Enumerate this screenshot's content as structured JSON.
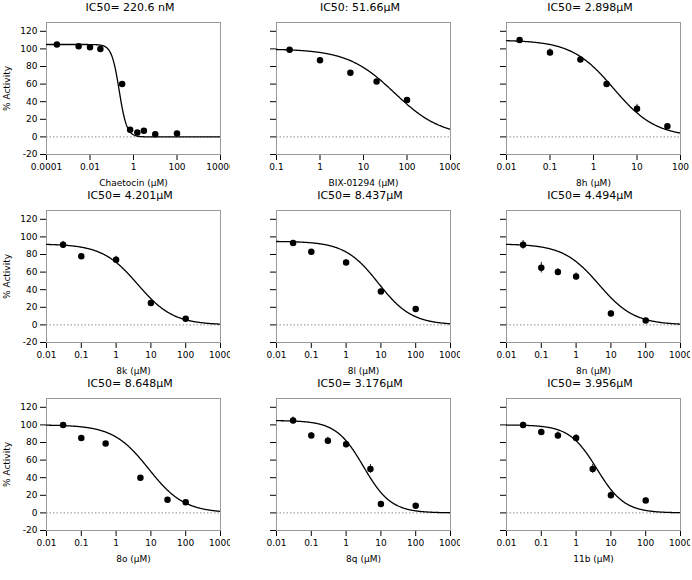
{
  "chart_data": [
    {
      "type": "scatter",
      "title": "IC50= 220.6 nM",
      "xlabel": "Chaetocin (μM)",
      "ylabel": "% Activity",
      "x": [
        0.0003,
        0.003,
        0.01,
        0.03,
        0.3,
        0.7,
        1.5,
        3.0,
        10.0,
        100.0
      ],
      "values": [
        105,
        103,
        102,
        100,
        60,
        8,
        5,
        7,
        3,
        4
      ],
      "fit": {
        "bottom": 0,
        "top": 105,
        "ic50": 0.2206,
        "hillslope": 2.5
      },
      "hline": 0,
      "xlim": [
        0.0001,
        10000
      ],
      "xticks": [
        0.0001,
        0.01,
        1,
        100,
        10000
      ],
      "ylim": [
        -20,
        130
      ],
      "yticks": [
        -20,
        0,
        20,
        40,
        60,
        80,
        100,
        120
      ],
      "log": "x",
      "color": "black",
      "marker": "circle",
      "line_style": "solid"
    },
    {
      "type": "scatter",
      "title": "IC50: 51.66μM",
      "xlabel": "BIX-01294 (μM)",
      "x": [
        0.2,
        1.0,
        5.0,
        20.0,
        100.0
      ],
      "values": [
        99,
        87,
        73,
        63,
        42
      ],
      "fit": {
        "bottom": 0,
        "top": 100,
        "ic50": 51.66,
        "hillslope": 0.8
      },
      "hline": 0,
      "xlim": [
        0.1,
        1000
      ],
      "xticks": [
        0.1,
        1,
        10,
        100,
        1000
      ],
      "ylim": [
        -20,
        130
      ],
      "yticks": [
        -20,
        0,
        20,
        40,
        60,
        80,
        100,
        120
      ],
      "log": "x",
      "tick_labels": "x",
      "color": "black",
      "marker": "circle",
      "line_style": "solid"
    },
    {
      "type": "scatter",
      "title": "IC50= 2.898μM",
      "xlabel": "8h (μM)",
      "x": [
        0.02,
        0.1,
        0.5,
        2.0,
        10.0,
        50.0
      ],
      "values": [
        110,
        96,
        88,
        60,
        32,
        12
      ],
      "yerr": [
        3,
        4,
        3,
        3,
        5,
        3
      ],
      "fit": {
        "bottom": 0,
        "top": 110,
        "ic50": 2.898,
        "hillslope": 0.9
      },
      "hline": 0,
      "xlim": [
        0.01,
        100
      ],
      "xticks": [
        0.01,
        0.1,
        1,
        10,
        100
      ],
      "ylim": [
        -20,
        130
      ],
      "yticks": [
        -20,
        0,
        20,
        40,
        60,
        80,
        100,
        120
      ],
      "log": "x",
      "tick_labels": "x",
      "color": "black",
      "marker": "circle",
      "line_style": "solid"
    },
    {
      "type": "scatter",
      "title": "IC50= 4.201μM",
      "xlabel": "8k (μM)",
      "ylabel": "% Activity",
      "x": [
        0.03,
        0.1,
        1.0,
        10.0,
        100.0
      ],
      "values": [
        91,
        78,
        74,
        25,
        7
      ],
      "yerr": [
        4,
        3,
        4,
        3,
        1
      ],
      "fit": {
        "bottom": 0,
        "top": 92,
        "ic50": 4.201,
        "hillslope": 0.85
      },
      "hline": 0,
      "xlim": [
        0.01,
        1000
      ],
      "xticks": [
        0.01,
        0.1,
        1,
        10,
        100,
        1000
      ],
      "ylim": [
        -20,
        130
      ],
      "yticks": [
        -20,
        0,
        20,
        40,
        60,
        80,
        100,
        120
      ],
      "log": "x",
      "color": "black",
      "marker": "circle",
      "line_style": "solid"
    },
    {
      "type": "scatter",
      "title": "IC50= 8.437μM",
      "xlabel": "8l (μM)",
      "x": [
        0.03,
        0.1,
        1.0,
        10.0,
        100.0
      ],
      "values": [
        93,
        83,
        71,
        38,
        18
      ],
      "yerr": [
        3,
        2,
        3,
        3,
        2
      ],
      "fit": {
        "bottom": 0,
        "top": 95,
        "ic50": 8.437,
        "hillslope": 0.9
      },
      "hline": 0,
      "xlim": [
        0.01,
        1000
      ],
      "xticks": [
        0.01,
        0.1,
        1,
        10,
        100,
        1000
      ],
      "ylim": [
        -20,
        130
      ],
      "yticks": [
        -20,
        0,
        20,
        40,
        60,
        80,
        100,
        120
      ],
      "log": "x",
      "tick_labels": "x",
      "color": "black",
      "marker": "circle",
      "line_style": "solid"
    },
    {
      "type": "scatter",
      "title": "IC50= 4.494μM",
      "xlabel": "8n (μM)",
      "x": [
        0.03,
        0.1,
        0.3,
        1.0,
        10.0,
        100.0
      ],
      "values": [
        91,
        65,
        60,
        55,
        13,
        5
      ],
      "yerr": [
        5,
        6,
        4,
        4,
        3,
        2
      ],
      "fit": {
        "bottom": 0,
        "top": 92,
        "ic50": 4.494,
        "hillslope": 0.85
      },
      "hline": 0,
      "xlim": [
        0.01,
        1000
      ],
      "xticks": [
        0.01,
        0.1,
        1,
        10,
        100,
        1000
      ],
      "ylim": [
        -20,
        130
      ],
      "yticks": [
        -20,
        0,
        20,
        40,
        60,
        80,
        100,
        120
      ],
      "log": "x",
      "tick_labels": "x",
      "color": "black",
      "marker": "circle",
      "line_style": "solid"
    },
    {
      "type": "scatter",
      "title": "IC50= 8.648μM",
      "xlabel": "8o (μM)",
      "ylabel": "% Activity",
      "x": [
        0.03,
        0.1,
        0.5,
        5.0,
        30.0,
        100.0
      ],
      "values": [
        100,
        85,
        79,
        40,
        15,
        12
      ],
      "fit": {
        "bottom": 0,
        "top": 100,
        "ic50": 8.648,
        "hillslope": 0.85
      },
      "hline": 0,
      "xlim": [
        0.01,
        1000
      ],
      "xticks": [
        0.01,
        0.1,
        1,
        10,
        100,
        1000
      ],
      "ylim": [
        -20,
        130
      ],
      "yticks": [
        -20,
        0,
        20,
        40,
        60,
        80,
        100,
        120
      ],
      "log": "x",
      "color": "black",
      "marker": "circle",
      "line_style": "solid"
    },
    {
      "type": "scatter",
      "title": "IC50= 3.176μM",
      "xlabel": "8q (μM)",
      "x": [
        0.03,
        0.1,
        0.3,
        1.0,
        5.0,
        10.0,
        100.0
      ],
      "values": [
        105,
        88,
        82,
        78,
        50,
        10,
        8
      ],
      "yerr": [
        4,
        3,
        4,
        4,
        5,
        3,
        2
      ],
      "fit": {
        "bottom": 0,
        "top": 105,
        "ic50": 3.176,
        "hillslope": 1.1
      },
      "hline": 0,
      "xlim": [
        0.01,
        1000
      ],
      "xticks": [
        0.01,
        0.1,
        1,
        10,
        100,
        1000
      ],
      "ylim": [
        -20,
        130
      ],
      "yticks": [
        -20,
        0,
        20,
        40,
        60,
        80,
        100,
        120
      ],
      "log": "x",
      "tick_labels": "x",
      "color": "black",
      "marker": "circle",
      "line_style": "solid"
    },
    {
      "type": "scatter",
      "title": "IC50= 3.956μM",
      "xlabel": "11b (μM)",
      "x": [
        0.03,
        0.1,
        0.3,
        1.0,
        3.0,
        10.0,
        100.0
      ],
      "values": [
        100,
        92,
        88,
        85,
        50,
        20,
        14
      ],
      "yerr": [
        3,
        3,
        4,
        4,
        5,
        4,
        3
      ],
      "fit": {
        "bottom": 0,
        "top": 100,
        "ic50": 3.956,
        "hillslope": 1.1
      },
      "hline": 0,
      "xlim": [
        0.01,
        1000
      ],
      "xticks": [
        0.01,
        0.1,
        1,
        10,
        100,
        1000
      ],
      "ylim": [
        -20,
        130
      ],
      "yticks": [
        -20,
        0,
        20,
        40,
        60,
        80,
        100,
        120
      ],
      "log": "x",
      "tick_labels": "x",
      "color": "black",
      "marker": "circle",
      "line_style": "solid"
    }
  ]
}
